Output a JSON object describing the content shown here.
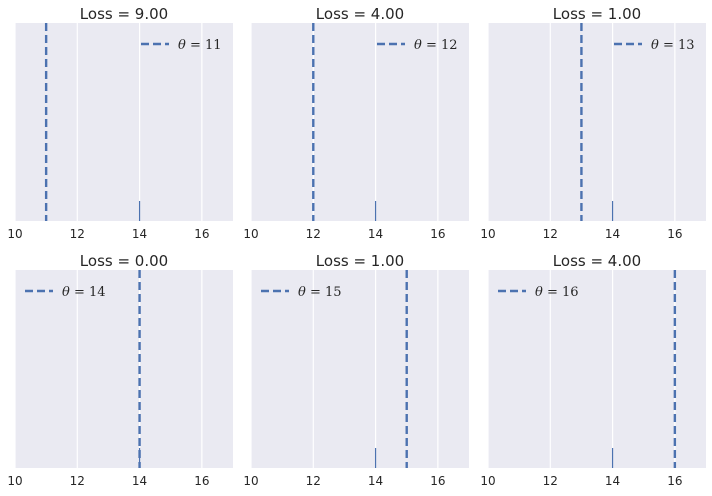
{
  "chart_data": [
    {
      "type": "line",
      "title": "Loss = 9.00",
      "xlim": [
        10,
        17
      ],
      "xticks": [
        10,
        12,
        14,
        16
      ],
      "observations": [
        14
      ],
      "theta": 11,
      "legend_label": "θ = 11",
      "legend_position": "top-right",
      "grid": true
    },
    {
      "type": "line",
      "title": "Loss = 4.00",
      "xlim": [
        10,
        17
      ],
      "xticks": [
        10,
        12,
        14,
        16
      ],
      "observations": [
        14
      ],
      "theta": 12,
      "legend_label": "θ = 12",
      "legend_position": "top-right",
      "grid": true
    },
    {
      "type": "line",
      "title": "Loss = 1.00",
      "xlim": [
        10,
        17
      ],
      "xticks": [
        10,
        12,
        14,
        16
      ],
      "observations": [
        14
      ],
      "theta": 13,
      "legend_label": "θ = 13",
      "legend_position": "top-right",
      "grid": true
    },
    {
      "type": "line",
      "title": "Loss = 0.00",
      "xlim": [
        10,
        17
      ],
      "xticks": [
        10,
        12,
        14,
        16
      ],
      "observations": [
        14
      ],
      "theta": 14,
      "legend_label": "θ = 14",
      "legend_position": "top-left",
      "grid": true
    },
    {
      "type": "line",
      "title": "Loss = 1.00",
      "xlim": [
        10,
        17
      ],
      "xticks": [
        10,
        12,
        14,
        16
      ],
      "observations": [
        14
      ],
      "theta": 15,
      "legend_label": "θ = 15",
      "legend_position": "top-left",
      "grid": true
    },
    {
      "type": "line",
      "title": "Loss = 4.00",
      "xlim": [
        10,
        17
      ],
      "xticks": [
        10,
        12,
        14,
        16
      ],
      "observations": [
        14
      ],
      "theta": 16,
      "legend_label": "θ = 16",
      "legend_position": "top-left",
      "grid": true
    }
  ],
  "colors": {
    "axes_background": "#eaeaf2",
    "grid": "#ffffff",
    "line": "#4c72b0",
    "text": "#262626"
  }
}
